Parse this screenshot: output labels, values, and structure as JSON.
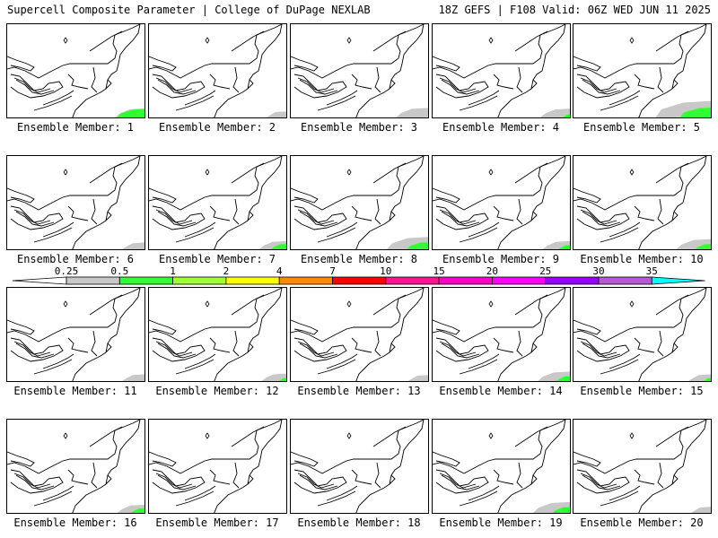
{
  "header": {
    "left": "Supercell Composite Parameter | College of DuPage NEXLAB",
    "right": "18Z GEFS | F108 Valid: 06Z WED JUN 11 2025"
  },
  "panels": [
    {
      "label": "Ensemble Member: 1",
      "shading": {
        "gray": 0.35,
        "green": 0.6
      }
    },
    {
      "label": "Ensemble Member: 2",
      "shading": {
        "gray": 0.15,
        "green": 0.0
      }
    },
    {
      "label": "Ensemble Member: 3",
      "shading": {
        "gray": 0.4,
        "green": 0.0
      }
    },
    {
      "label": "Ensemble Member: 4",
      "shading": {
        "gray": 0.35,
        "green": 0.1
      }
    },
    {
      "label": "Ensemble Member: 5",
      "shading": {
        "gray": 0.9,
        "green": 0.7
      }
    },
    {
      "label": "Ensemble Member: 6",
      "shading": {
        "gray": 0.2,
        "green": 0.0
      }
    },
    {
      "label": "Ensemble Member: 7",
      "shading": {
        "gray": 0.3,
        "green": 0.3
      }
    },
    {
      "label": "Ensemble Member: 8",
      "shading": {
        "gray": 0.6,
        "green": 0.45
      }
    },
    {
      "label": "Ensemble Member: 9",
      "shading": {
        "gray": 0.3,
        "green": 0.2
      }
    },
    {
      "label": "Ensemble Member: 10",
      "shading": {
        "gray": 0.45,
        "green": 0.3
      }
    },
    {
      "label": "Ensemble Member: 11",
      "shading": {
        "gray": 0.2,
        "green": 0.0
      }
    },
    {
      "label": "Ensemble Member: 12",
      "shading": {
        "gray": 0.25,
        "green": 0.1
      }
    },
    {
      "label": "Ensemble Member: 13",
      "shading": {
        "gray": 0.15,
        "green": 0.0
      }
    },
    {
      "label": "Ensemble Member: 14",
      "shading": {
        "gray": 0.4,
        "green": 0.25
      }
    },
    {
      "label": "Ensemble Member: 15",
      "shading": {
        "gray": 0.2,
        "green": 0.1
      }
    },
    {
      "label": "Ensemble Member: 16",
      "shading": {
        "gray": 0.3,
        "green": 0.25
      }
    },
    {
      "label": "Ensemble Member: 17",
      "shading": {
        "gray": 0.0,
        "green": 0.0
      }
    },
    {
      "label": "Ensemble Member: 18",
      "shading": {
        "gray": 0.0,
        "green": 0.0
      }
    },
    {
      "label": "Ensemble Member: 19",
      "shading": {
        "gray": 0.5,
        "green": 0.35
      }
    },
    {
      "label": "Ensemble Member: 20",
      "shading": {
        "gray": 0.15,
        "green": 0.0
      }
    }
  ],
  "legend": {
    "ticks": [
      "0.25",
      "0.5",
      "1",
      "2",
      "4",
      "7",
      "10",
      "15",
      "20",
      "25",
      "30",
      "35"
    ],
    "colors": [
      "#c8c8c8",
      "#32ff32",
      "#a0ff32",
      "#ffff00",
      "#ff8c00",
      "#ff0000",
      "#ff1493",
      "#ff00c8",
      "#ff00ff",
      "#9600ff",
      "#b45ad2",
      "#00ffff"
    ]
  },
  "colors": {
    "outline": "#000000",
    "gray": "#c8c8c8",
    "green": "#32ff32"
  }
}
